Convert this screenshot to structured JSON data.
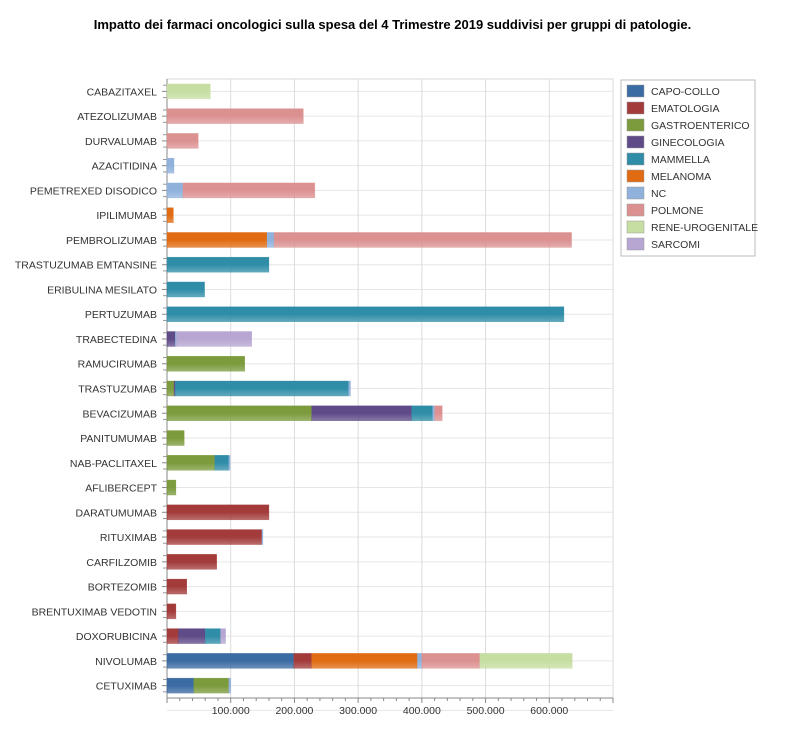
{
  "chart_data": {
    "type": "bar",
    "orientation": "horizontal",
    "stacked": true,
    "title": "Impatto dei farmaci oncologici sulla spesa del 4 Trimestre 2019 suddivisi per gruppi di patologie.",
    "xlabel": "",
    "ylabel": "",
    "xlim": [
      0,
      700000
    ],
    "x_ticks": [
      100000,
      200000,
      300000,
      400000,
      500000,
      600000
    ],
    "x_tick_labels": [
      "100.000",
      "200.000",
      "300.000",
      "400.000",
      "500.000",
      "600.000"
    ],
    "grid": true,
    "legend_position": "right-top",
    "series": [
      {
        "name": "CAPO-COLLO",
        "color": "#3b6ba3"
      },
      {
        "name": "EMATOLOGIA",
        "color": "#a33b3b"
      },
      {
        "name": "GASTROENTERICO",
        "color": "#7b9b3c"
      },
      {
        "name": "GINECOLOGIA",
        "color": "#5f4b87"
      },
      {
        "name": "MAMMELLA",
        "color": "#2f8da8"
      },
      {
        "name": "MELANOMA",
        "color": "#e06b12"
      },
      {
        "name": "NC",
        "color": "#8fb1dc"
      },
      {
        "name": "POLMONE",
        "color": "#dc9191"
      },
      {
        "name": "RENE-UROGENITALE",
        "color": "#c6dea2"
      },
      {
        "name": "SARCOMI",
        "color": "#b6a6d1"
      }
    ],
    "bars": [
      {
        "label": "CABAZITAXEL",
        "segments": {
          "RENE-UROGENITALE": 68000
        }
      },
      {
        "label": "ATEZOLIZUMAB",
        "segments": {
          "POLMONE": 214000
        }
      },
      {
        "label": "DURVALUMAB",
        "segments": {
          "POLMONE": 49000
        }
      },
      {
        "label": "AZACITIDINA",
        "segments": {
          "NC": 11000
        }
      },
      {
        "label": "PEMETREXED DISODICO",
        "segments": {
          "NC": 25000,
          "POLMONE": 207000
        }
      },
      {
        "label": "IPILIMUMAB",
        "segments": {
          "MELANOMA": 10000
        }
      },
      {
        "label": "PEMBROLIZUMAB",
        "segments": {
          "MELANOMA": 157000,
          "NC": 11000,
          "POLMONE": 467000
        }
      },
      {
        "label": "TRASTUZUMAB EMTANSINE",
        "segments": {
          "MAMMELLA": 160000
        }
      },
      {
        "label": "ERIBULINA MESILATO",
        "segments": {
          "MAMMELLA": 59000
        }
      },
      {
        "label": "PERTUZUMAB",
        "segments": {
          "MAMMELLA": 623000
        }
      },
      {
        "label": "TRABECTEDINA",
        "segments": {
          "GINECOLOGIA": 13000,
          "NC": 2000,
          "SARCOMI": 118000
        }
      },
      {
        "label": "RAMUCIRUMAB",
        "segments": {
          "GASTROENTERICO": 122000
        }
      },
      {
        "label": "TRASTUZUMAB",
        "segments": {
          "GASTROENTERICO": 11000,
          "GINECOLOGIA": 2000,
          "MAMMELLA": 272000,
          "NC": 3000
        }
      },
      {
        "label": "BEVACIZUMAB",
        "segments": {
          "GASTROENTERICO": 227000,
          "GINECOLOGIA": 157000,
          "MAMMELLA": 33000,
          "NC": 3000,
          "POLMONE": 12000
        }
      },
      {
        "label": "PANITUMUMAB",
        "segments": {
          "GASTROENTERICO": 27000
        }
      },
      {
        "label": "NAB-PACLITAXEL",
        "segments": {
          "GASTROENTERICO": 75000,
          "MAMMELLA": 22000,
          "NC": 2000
        }
      },
      {
        "label": "AFLIBERCEPT",
        "segments": {
          "GASTROENTERICO": 14000
        }
      },
      {
        "label": "DARATUMUMAB",
        "segments": {
          "EMATOLOGIA": 160000
        }
      },
      {
        "label": "RITUXIMAB",
        "segments": {
          "EMATOLOGIA": 149000,
          "NC": 1500
        }
      },
      {
        "label": "CARFILZOMIB",
        "segments": {
          "EMATOLOGIA": 78000
        }
      },
      {
        "label": "BORTEZOMIB",
        "segments": {
          "EMATOLOGIA": 31000
        }
      },
      {
        "label": "BRENTUXIMAB VEDOTIN",
        "segments": {
          "EMATOLOGIA": 14000
        }
      },
      {
        "label": "DOXORUBICINA",
        "segments": {
          "EMATOLOGIA": 18000,
          "GINECOLOGIA": 42000,
          "MAMMELLA": 24000,
          "SARCOMI": 8000
        }
      },
      {
        "label": "NIVOLUMAB",
        "segments": {
          "CAPO-COLLO": 199000,
          "EMATOLOGIA": 28000,
          "MELANOMA": 166000,
          "NC": 7000,
          "POLMONE": 91000,
          "RENE-UROGENITALE": 145000
        }
      },
      {
        "label": "CETUXIMAB",
        "segments": {
          "CAPO-COLLO": 42000,
          "GASTROENTERICO": 55000,
          "NC": 3000
        }
      }
    ]
  }
}
